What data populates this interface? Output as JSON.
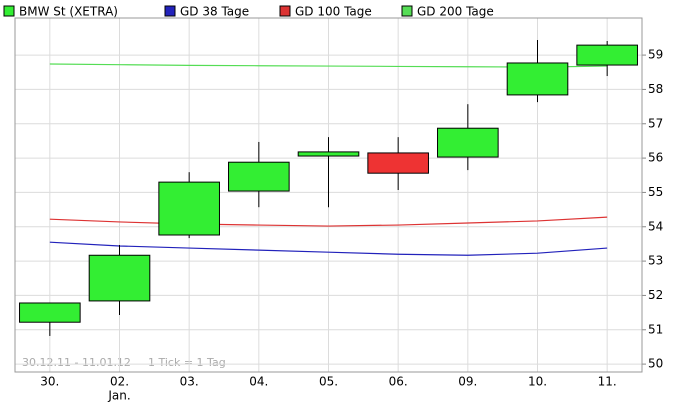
{
  "chart_data": {
    "type": "candlestick",
    "categories": [
      "30.",
      "02.",
      "03.",
      "04.",
      "05.",
      "06.",
      "09.",
      "10.",
      "11."
    ],
    "x_secondary_labels": [
      null,
      "Jan.",
      null,
      null,
      null,
      null,
      null,
      null,
      null
    ],
    "candles": {
      "name": "BMW St (XETRA)",
      "color_up": "#33ee33",
      "color_down": "#ee3333",
      "open": [
        51.22,
        51.84,
        53.76,
        55.04,
        56.06,
        56.15,
        56.03,
        57.84,
        58.71
      ],
      "close": [
        51.78,
        53.17,
        55.3,
        55.88,
        56.18,
        55.56,
        56.87,
        58.77,
        59.29
      ],
      "high": [
        51.78,
        53.47,
        55.59,
        56.47,
        56.61,
        56.61,
        57.57,
        59.44,
        59.41
      ],
      "low": [
        50.82,
        51.43,
        53.67,
        54.57,
        54.57,
        55.07,
        55.65,
        57.63,
        58.39
      ]
    },
    "series": [
      {
        "name": "GD 38 Tage",
        "color": "#2222bb",
        "values": [
          53.55,
          53.44,
          53.38,
          53.32,
          53.26,
          53.2,
          53.17,
          53.23,
          53.38
        ]
      },
      {
        "name": "GD 100 Tage",
        "color": "#dd3333",
        "values": [
          54.22,
          54.14,
          54.08,
          54.05,
          54.02,
          54.05,
          54.11,
          54.17,
          54.28
        ]
      },
      {
        "name": "GD 200 Tage",
        "color": "#55dd55",
        "values": [
          58.74,
          58.72,
          58.7,
          58.69,
          58.68,
          58.67,
          58.66,
          58.65,
          58.68
        ]
      }
    ],
    "ylim": [
      49.77,
      60.08
    ],
    "yticks": [
      50,
      51,
      52,
      53,
      54,
      55,
      56,
      57,
      58,
      59
    ],
    "grid": true,
    "annotations": [
      "30.12.11 - 11.01.12",
      "1 Tick = 1 Tag"
    ]
  }
}
